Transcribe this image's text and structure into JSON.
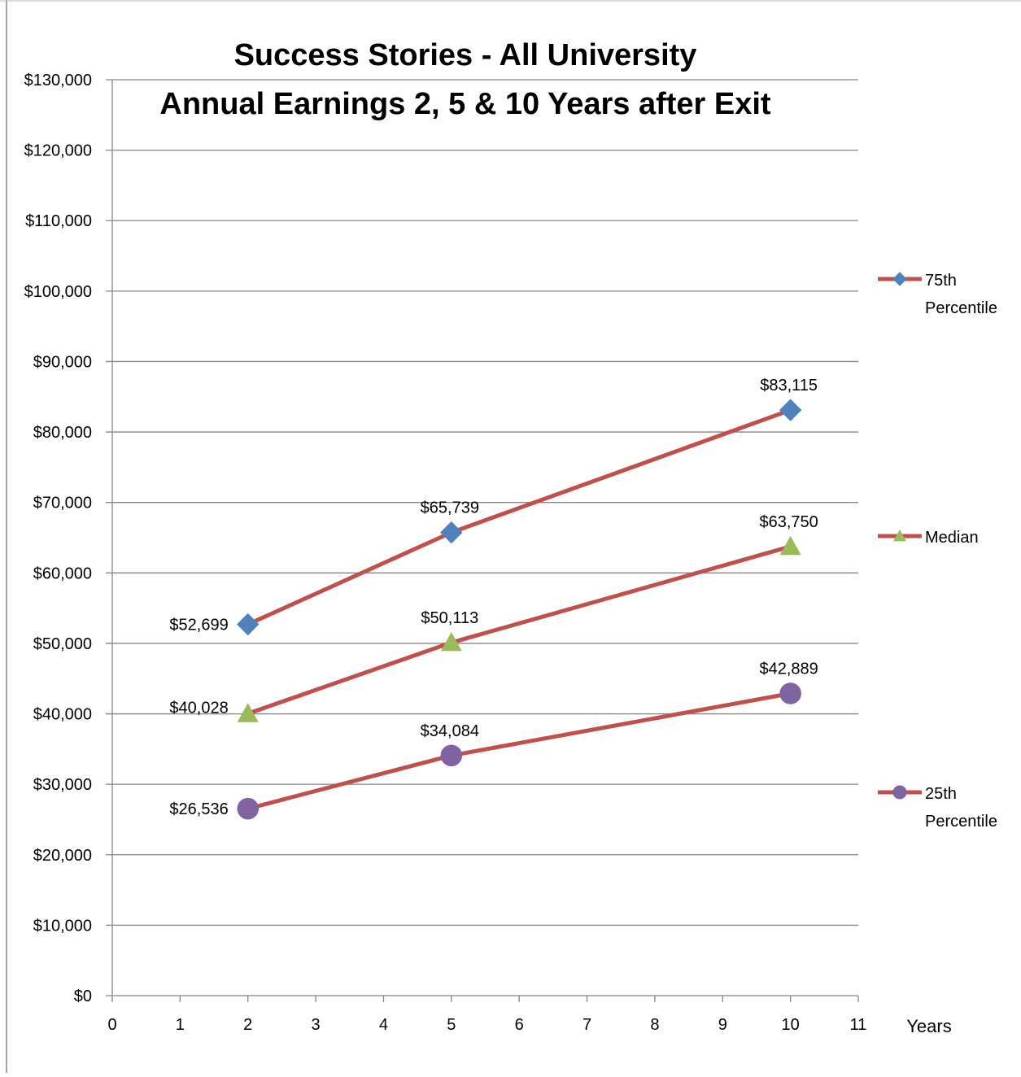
{
  "chart_data": {
    "type": "line",
    "title": "Success Stories - All University",
    "subtitle": "Annual Earnings 2, 5 & 10 Years after Exit",
    "xlabel": "Years",
    "ylabel": "",
    "xlim": [
      0,
      11
    ],
    "ylim": [
      0,
      130000
    ],
    "x_ticks": [
      "0",
      "1",
      "2",
      "3",
      "4",
      "5",
      "6",
      "7",
      "8",
      "9",
      "10",
      "11"
    ],
    "y_ticks": [
      "$0",
      "$10,000",
      "$20,000",
      "$30,000",
      "$40,000",
      "$50,000",
      "$60,000",
      "$70,000",
      "$80,000",
      "$90,000",
      "$100,000",
      "$110,000",
      "$120,000",
      "$130,000"
    ],
    "grid": true,
    "legend_position": "right",
    "line_color": "#C0504D",
    "series": [
      {
        "name": "75th Percentile",
        "legend_lines": [
          "75th",
          "Percentile"
        ],
        "marker": "diamond",
        "marker_color": "#4F81BD",
        "x": [
          2,
          5,
          10
        ],
        "values": [
          52699,
          65739,
          83115
        ],
        "labels": [
          "$52,699",
          "$65,739",
          "$83,115"
        ]
      },
      {
        "name": "Median",
        "legend_lines": [
          "Median"
        ],
        "marker": "triangle",
        "marker_color": "#9BBB59",
        "x": [
          2,
          5,
          10
        ],
        "values": [
          40028,
          50113,
          63750
        ],
        "labels": [
          "$40,028",
          "$50,113",
          "$63,750"
        ]
      },
      {
        "name": "25th Percentile",
        "legend_lines": [
          "25th",
          "Percentile"
        ],
        "marker": "circle",
        "marker_color": "#8064A2",
        "x": [
          2,
          5,
          10
        ],
        "values": [
          26536,
          34084,
          42889
        ],
        "labels": [
          "$26,536",
          "$34,084",
          "$42,889"
        ]
      }
    ]
  }
}
